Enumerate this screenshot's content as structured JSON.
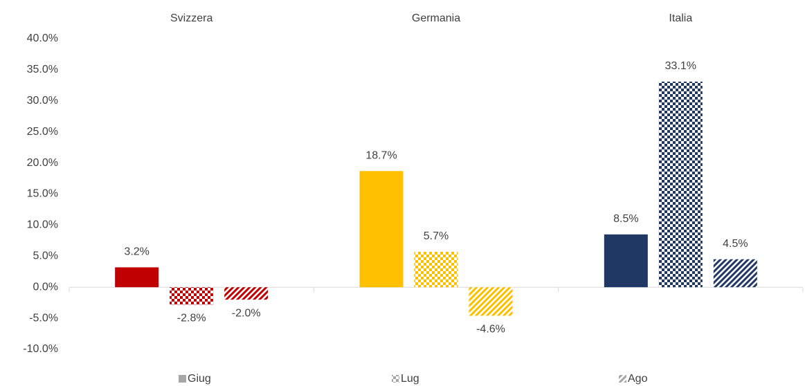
{
  "chart_data": {
    "type": "bar",
    "categories": [
      "Svizzera",
      "Germania",
      "Italia"
    ],
    "colors": [
      "#c00000",
      "#ffc000",
      "#1f3864"
    ],
    "series": [
      {
        "name": "Giug",
        "color": "#a6a6a6",
        "pattern": "solid",
        "values": [
          3.2,
          18.7,
          8.5
        ],
        "value_labels": [
          "3.2%",
          "18.7%",
          "8.5%"
        ]
      },
      {
        "name": "Lug",
        "color": "#a6a6a6",
        "pattern": "checker",
        "values": [
          -2.8,
          5.7,
          33.1
        ],
        "value_labels": [
          "-2.8%",
          "5.7%",
          "33.1%"
        ]
      },
      {
        "name": "Ago",
        "color": "#a6a6a6",
        "pattern": "diagonal",
        "values": [
          -2.0,
          -4.6,
          4.5
        ],
        "value_labels": [
          "-2.0%",
          "-4.6%",
          "4.5%"
        ]
      }
    ],
    "ylim": [
      -10,
      40
    ],
    "yticks": [
      {
        "value": -10,
        "label": "-10.0%"
      },
      {
        "value": -5,
        "label": "-5.0%"
      },
      {
        "value": 0,
        "label": "0.0%"
      },
      {
        "value": 5,
        "label": "5.0%"
      },
      {
        "value": 10,
        "label": "10.0%"
      },
      {
        "value": 15,
        "label": "15.0%"
      },
      {
        "value": 20,
        "label": "20.0%"
      },
      {
        "value": 25,
        "label": "25.0%"
      },
      {
        "value": 30,
        "label": "30.0%"
      },
      {
        "value": 35,
        "label": "35.0%"
      },
      {
        "value": 40,
        "label": "40.0%"
      }
    ],
    "grid": false,
    "legend": "bottom"
  }
}
